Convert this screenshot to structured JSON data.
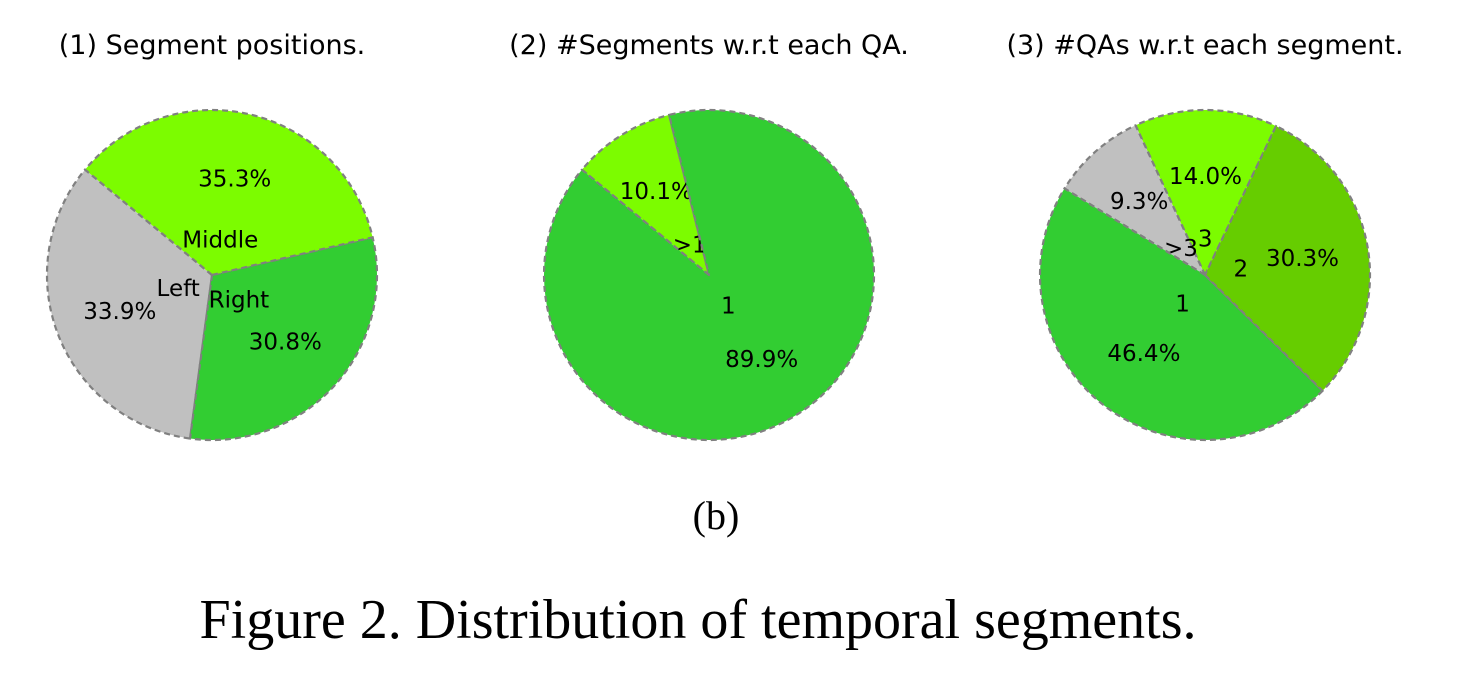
{
  "figure": {
    "sub_label": "(b)",
    "caption": "Figure 2. Distribution of temporal segments."
  },
  "chart_data": [
    {
      "type": "pie",
      "title": "(1) Segment positions.",
      "slices": [
        {
          "label": "Left",
          "value": 33.9,
          "pct_label": "33.9%",
          "color": "#c0c0c0"
        },
        {
          "label": "Right",
          "value": 30.8,
          "pct_label": "30.8%",
          "color": "#32cd32"
        },
        {
          "label": "Middle",
          "value": 35.3,
          "pct_label": "35.3%",
          "color": "#7cfc00"
        }
      ],
      "edge_color": "#808080",
      "edge_style": "dashed"
    },
    {
      "type": "pie",
      "title": "(2) #Segments w.r.t each QA.",
      "slices": [
        {
          "label": ">1",
          "value": 10.1,
          "pct_label": "10.1%",
          "color": "#7cfc00"
        },
        {
          "label": "1",
          "value": 89.9,
          "pct_label": "89.9%",
          "color": "#32cd32"
        }
      ],
      "edge_color": "#808080",
      "edge_style": "dashed"
    },
    {
      "type": "pie",
      "title": "(3) #QAs w.r.t each segment.",
      "slices": [
        {
          "label": "3",
          "value": 14.0,
          "pct_label": "14.0%",
          "color": "#7cfc00"
        },
        {
          "label": ">3",
          "value": 9.3,
          "pct_label": "9.3%",
          "color": "#c0c0c0"
        },
        {
          "label": "1",
          "value": 46.4,
          "pct_label": "46.4%",
          "color": "#32cd32"
        },
        {
          "label": "2",
          "value": 30.3,
          "pct_label": "30.3%",
          "color": "#66cd00"
        }
      ],
      "edge_color": "#808080",
      "edge_style": "dashed"
    }
  ]
}
